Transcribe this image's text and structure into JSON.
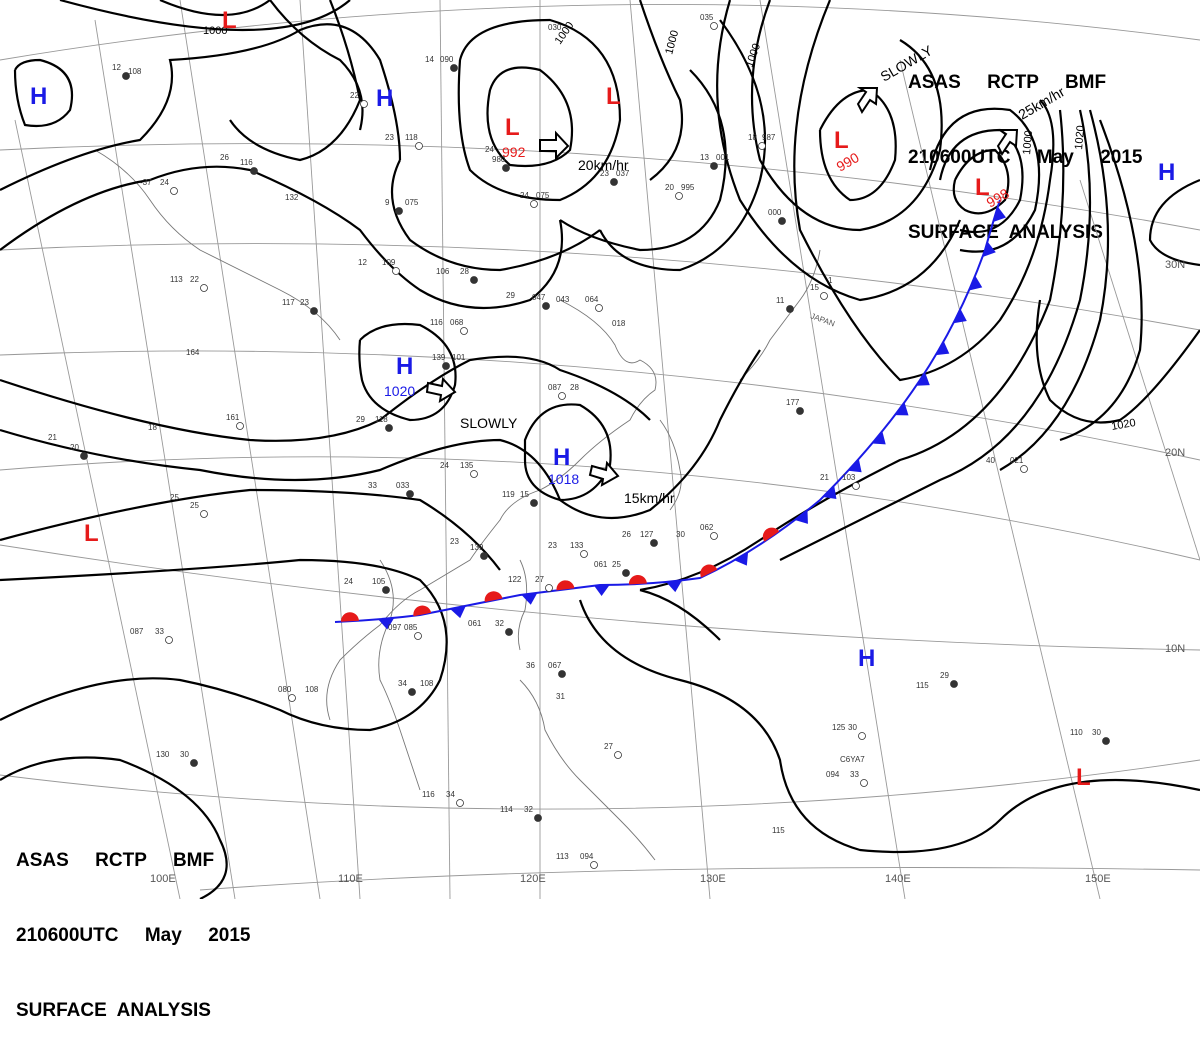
{
  "header": {
    "line1": "ASAS     RCTP     BMF",
    "line2": "210600UTC     May     2015",
    "line3": "SURFACE  ANALYSIS"
  },
  "grid_labels": {
    "lon": [
      "100E",
      "110E",
      "120E",
      "130E",
      "140E",
      "150E"
    ],
    "lat": [
      "30N",
      "20N",
      "10N"
    ]
  },
  "pressure_systems": [
    {
      "type": "H",
      "value": "1020"
    },
    {
      "type": "H",
      "value": "1018"
    },
    {
      "type": "L",
      "value": "992"
    },
    {
      "type": "L",
      "value": "990"
    },
    {
      "type": "L",
      "value": "998"
    },
    {
      "type": "H",
      "value": ""
    },
    {
      "type": "H",
      "value": ""
    },
    {
      "type": "H",
      "value": ""
    },
    {
      "type": "H",
      "value": ""
    },
    {
      "type": "L",
      "value": ""
    },
    {
      "type": "L",
      "value": ""
    },
    {
      "type": "L",
      "value": ""
    },
    {
      "type": "L",
      "value": ""
    }
  ],
  "movements": [
    "20km/hr",
    "SLOWLY",
    "15km/hr",
    "SLOWLY",
    "25km/hr"
  ],
  "isobar_labels": [
    "1000",
    "1000",
    "1000",
    "1000",
    "1000",
    "1020",
    "1020"
  ],
  "country_label": "JAPAN",
  "ship_label": "C6YA7",
  "stations": [
    "12",
    "108",
    "22",
    "14",
    "090",
    "030",
    "035",
    "26",
    "116",
    "23",
    "118",
    "24",
    "980",
    "-37",
    "24",
    "132",
    "9",
    "075",
    "24",
    "075",
    "23",
    "037",
    "20",
    "995",
    "13",
    "001",
    "18",
    "987",
    "000",
    "12",
    "109",
    "106",
    "28",
    "113",
    "22",
    "117",
    "23",
    "116",
    "068",
    "29",
    "047",
    "043",
    "064",
    "018",
    "11",
    "1",
    "15",
    "164",
    "139",
    "101",
    "087",
    "28",
    "177",
    "40",
    "021",
    "21",
    "20",
    "18",
    "161",
    "29",
    "118",
    "24",
    "135",
    "33",
    "033",
    "25",
    "25",
    "119",
    "15",
    "21",
    "103",
    "23",
    "139",
    "23",
    "133",
    "26",
    "127",
    "30",
    "062",
    "24",
    "105",
    "122",
    "27",
    "061",
    "25",
    "087",
    "33",
    "061",
    "32",
    "097",
    "085",
    "36",
    "067",
    "31",
    "080",
    "108",
    "34",
    "108",
    "27",
    "130",
    "30",
    "125",
    "30",
    "115",
    "29",
    "094",
    "33",
    "110",
    "30",
    "116",
    "34",
    "114",
    "32",
    "113",
    "094",
    "115"
  ],
  "colors": {
    "high": "#1a1ae6",
    "low": "#e61a1a",
    "cold_front": "#1a1ae6",
    "warm_front": "#e61a1a",
    "isobar": "#000000"
  },
  "icons": [
    "movement-arrow-icon",
    "station-model-icon",
    "cold-front-triangle-icon",
    "warm-front-semicircle-icon"
  ]
}
